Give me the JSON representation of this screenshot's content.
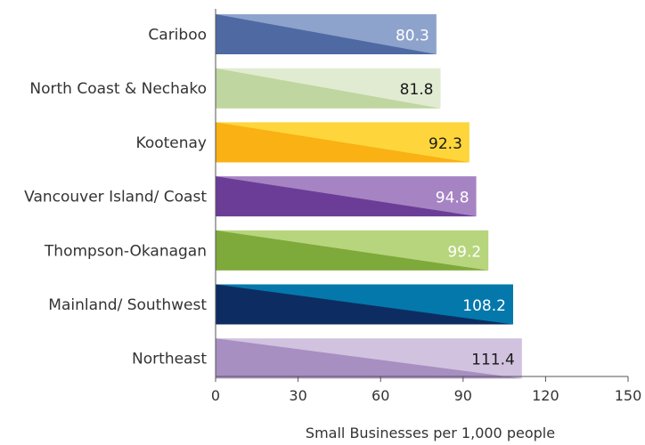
{
  "chart_data": {
    "type": "bar",
    "orientation": "horizontal",
    "categories": [
      "Cariboo",
      "North Coast & Nechako",
      "Kootenay",
      "Vancouver Island/ Coast",
      "Thompson-Okanagan",
      "Mainland/ Southwest",
      "Northeast"
    ],
    "values": [
      80.3,
      81.8,
      92.3,
      94.8,
      99.2,
      108.2,
      111.4
    ],
    "value_labels": [
      "80.3",
      "81.8",
      "92.3",
      "94.8",
      "99.2",
      "108.2",
      "111.4"
    ],
    "xlabel": "Small Businesses per 1,000 people",
    "ylabel": "",
    "xlim": [
      0,
      150
    ],
    "xticks": [
      0,
      30,
      60,
      90,
      120,
      150
    ],
    "xtick_labels": [
      "0",
      "30",
      "60",
      "90",
      "120",
      "150"
    ],
    "grid": false,
    "legend": "none",
    "colors": [
      {
        "dark": "#4f6aa3",
        "light": "#8ea3cc",
        "label": "#ffffff"
      },
      {
        "dark": "#bfd6a0",
        "light": "#e1ebd2",
        "label": "#1a1a1a"
      },
      {
        "dark": "#f9b114",
        "light": "#fed63b",
        "label": "#1a1a1a"
      },
      {
        "dark": "#6c3d96",
        "light": "#a684c4",
        "label": "#ffffff"
      },
      {
        "dark": "#7ea93b",
        "light": "#b7d57d",
        "label": "#ffffff"
      },
      {
        "dark": "#0d2d62",
        "light": "#0478ab",
        "label": "#ffffff"
      },
      {
        "dark": "#a78fc1",
        "light": "#d1c2e0",
        "label": "#1a1a1a"
      }
    ],
    "axis_color": "#555555"
  }
}
